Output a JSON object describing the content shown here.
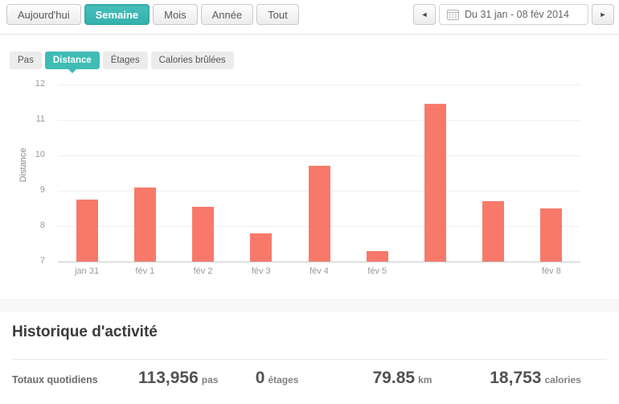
{
  "toolbar": {
    "range_buttons": [
      {
        "label": "Aujourd'hui",
        "active": false
      },
      {
        "label": "Semaine",
        "active": true
      },
      {
        "label": "Mois",
        "active": false
      },
      {
        "label": "Année",
        "active": false
      },
      {
        "label": "Tout",
        "active": false
      }
    ]
  },
  "date_nav": {
    "label": "Du 31 jan - 08 fév 2014"
  },
  "icons": {
    "prev_arrow": "◄",
    "next_arrow": "►",
    "calendar": "calendar-grid"
  },
  "metric_tabs": [
    {
      "label": "Pas",
      "active": false
    },
    {
      "label": "Distance",
      "active": true
    },
    {
      "label": "Étages",
      "active": false
    },
    {
      "label": "Calories brûlées",
      "active": false
    }
  ],
  "chart_data": {
    "type": "bar",
    "title": "",
    "ylabel": "Distance",
    "xlabel": "",
    "categories": [
      "jan 31",
      "fév 1",
      "fév 2",
      "fév 3",
      "fév 4",
      "fév 5",
      "",
      "",
      "fév 8"
    ],
    "values": [
      8.75,
      9.1,
      8.55,
      7.8,
      9.7,
      7.3,
      11.45,
      8.7,
      8.5
    ],
    "ylim": [
      7,
      12
    ],
    "yticks": [
      7,
      8,
      9,
      10,
      11,
      12
    ],
    "grid": true,
    "legend_position": "none",
    "bar_color": "#f8796a"
  },
  "history": {
    "title": "Historique d'activité",
    "row_label": "Totaux quotidiens",
    "stats": [
      {
        "value": "113,956",
        "unit": "pas"
      },
      {
        "value": "0",
        "unit": "étages"
      },
      {
        "value": "79.85",
        "unit": "km"
      },
      {
        "value": "18,753",
        "unit": "calories"
      }
    ]
  },
  "colors": {
    "accent_teal": "#3fbcb4",
    "bar_coral": "#f8796a"
  }
}
